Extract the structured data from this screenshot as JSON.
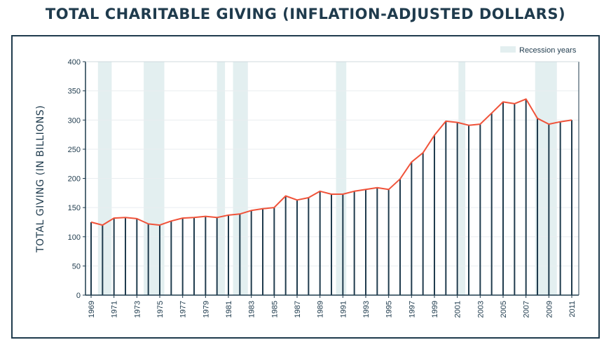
{
  "chart_data": {
    "type": "bar",
    "title": "TOTAL CHARITABLE GIVING (INFLATION-ADJUSTED DOLLARS)",
    "ylabel": "TOTAL GIVING (IN BILLIONS)",
    "xlabel": "",
    "ylim": [
      0,
      400
    ],
    "yticks": [
      0,
      50,
      100,
      150,
      200,
      250,
      300,
      350,
      400
    ],
    "grid": true,
    "legend": {
      "label": "Recession years",
      "placement": "top-right"
    },
    "years": [
      1969,
      1970,
      1971,
      1972,
      1973,
      1974,
      1975,
      1976,
      1977,
      1978,
      1979,
      1980,
      1981,
      1982,
      1983,
      1984,
      1985,
      1986,
      1987,
      1988,
      1989,
      1990,
      1991,
      1992,
      1993,
      1994,
      1995,
      1996,
      1997,
      1998,
      1999,
      2000,
      2001,
      2002,
      2003,
      2004,
      2005,
      2006,
      2007,
      2008,
      2009,
      2010,
      2011
    ],
    "x_tick_labels": [
      "1969",
      "1971",
      "1973",
      "1975",
      "1977",
      "1979",
      "1981",
      "1983",
      "1985",
      "1987",
      "1989",
      "1991",
      "1993",
      "1995",
      "1997",
      "1999",
      "2001",
      "2003",
      "2005",
      "2007",
      "2009",
      "2011"
    ],
    "values": [
      125,
      120,
      132,
      133,
      131,
      122,
      120,
      127,
      132,
      133,
      135,
      133,
      137,
      139,
      145,
      148,
      150,
      170,
      163,
      167,
      178,
      173,
      173,
      178,
      181,
      184,
      181,
      199,
      228,
      244,
      274,
      298,
      296,
      291,
      293,
      312,
      331,
      328,
      336,
      303,
      293,
      297,
      300
    ],
    "recessions": [
      {
        "start": 1969.6,
        "end": 1970.8
      },
      {
        "start": 1973.6,
        "end": 1975.4
      },
      {
        "start": 1980.0,
        "end": 1980.7
      },
      {
        "start": 1981.4,
        "end": 1982.7
      },
      {
        "start": 1990.4,
        "end": 1991.3
      },
      {
        "start": 2001.1,
        "end": 2001.7
      },
      {
        "start": 2007.8,
        "end": 2009.7
      }
    ],
    "colors": {
      "bar": "#1f3b4d",
      "line": "#f0533a",
      "recession": "#e3eff0",
      "grid": "#e9eef0",
      "axis": "#1f3b4d"
    }
  }
}
